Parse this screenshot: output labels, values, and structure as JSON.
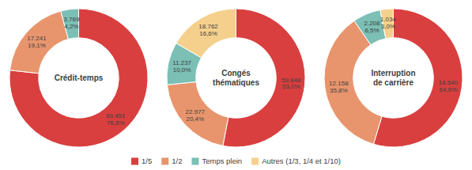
{
  "chart_data": [
    {
      "type": "pie",
      "title": "Crédit-temps",
      "categories": [
        "1/5",
        "1/2",
        "Temps plein"
      ],
      "colors": [
        "#d93f3f",
        "#e8956d",
        "#7bbfb5"
      ],
      "values": [
        69451,
        17241,
        3769
      ],
      "value_labels": [
        "69.451",
        "17.241",
        "3.769"
      ],
      "percentages": [
        76.8,
        19.1,
        4.2
      ],
      "percentage_labels": [
        "76,8%",
        "19,1%",
        "4,2%"
      ]
    },
    {
      "type": "pie",
      "title": "Congés\nthématiques",
      "categories": [
        "1/5",
        "1/2",
        "Temps plein",
        "Autres (1/3, 1/4 et 1/10)"
      ],
      "colors": [
        "#d93f3f",
        "#e8956d",
        "#7bbfb5",
        "#f5d08c"
      ],
      "values": [
        59848,
        22977,
        11237,
        18762
      ],
      "value_labels": [
        "59.848",
        "22.977",
        "11.237",
        "18.762"
      ],
      "percentages": [
        53.0,
        20.4,
        10.0,
        16.6
      ],
      "percentage_labels": [
        "53,0%",
        "20,4%",
        "10,0%",
        "16,6%"
      ],
      "legend": "bottom"
    },
    {
      "type": "pie",
      "title": "Interruption\nde carrière",
      "categories": [
        "1/5",
        "1/2",
        "Temps plein",
        "Autres (1/3, 1/4 et 1/10)"
      ],
      "colors": [
        "#d93f3f",
        "#e8956d",
        "#7bbfb5",
        "#f5d08c"
      ],
      "values": [
        18540,
        12158,
        2208,
        1034
      ],
      "value_labels": [
        "18.540",
        "12.158",
        "2.208",
        "1.034"
      ],
      "percentages": [
        54.6,
        35.8,
        6.5,
        3.0
      ],
      "percentage_labels": [
        "54,6%",
        "35,8%",
        "6,5%",
        "3,0%"
      ]
    }
  ]
}
